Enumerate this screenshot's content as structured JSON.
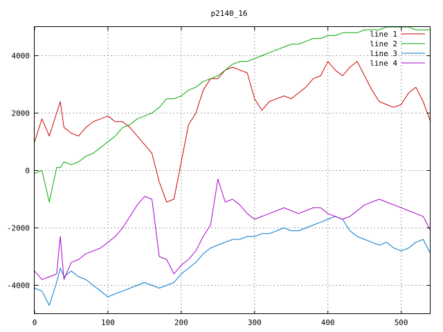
{
  "chart_data": {
    "type": "line",
    "title": "p2140_16",
    "xlabel": "",
    "ylabel": "",
    "xlim": [
      0,
      540
    ],
    "ylim": [
      -5000,
      5000
    ],
    "x_ticks": [
      "0",
      "100",
      "200",
      "300",
      "400",
      "500"
    ],
    "y_ticks": [
      "-4000",
      "-2000",
      "0",
      "2000",
      "4000"
    ],
    "grid": true,
    "legend_position": "top-right",
    "x": [
      0,
      10,
      20,
      30,
      35,
      40,
      50,
      60,
      70,
      80,
      90,
      100,
      110,
      120,
      130,
      140,
      150,
      160,
      170,
      180,
      190,
      200,
      210,
      220,
      230,
      240,
      250,
      260,
      270,
      280,
      290,
      300,
      310,
      320,
      330,
      340,
      350,
      360,
      370,
      380,
      390,
      400,
      410,
      420,
      430,
      440,
      450,
      460,
      470,
      480,
      490,
      500,
      510,
      520,
      530,
      540
    ],
    "series": [
      {
        "name": "line 1",
        "color": "#cc0000",
        "values": [
          1000,
          1800,
          1200,
          2000,
          2400,
          1500,
          1300,
          1200,
          1500,
          1700,
          1800,
          1900,
          1700,
          1700,
          1500,
          1200,
          900,
          600,
          -400,
          -1100,
          -1000,
          300,
          1600,
          2000,
          2800,
          3200,
          3200,
          3500,
          3600,
          3500,
          3400,
          2500,
          2100,
          2400,
          2500,
          2600,
          2500,
          2700,
          2900,
          3200,
          3300,
          3800,
          3500,
          3300,
          3600,
          3800,
          3300,
          2800,
          2400,
          2300,
          2200,
          2300,
          2700,
          2900,
          2400,
          1700
        ]
      },
      {
        "name": "line 2",
        "color": "#00aa00",
        "values": [
          -100,
          0,
          -1100,
          100,
          100,
          300,
          200,
          300,
          500,
          600,
          800,
          1000,
          1200,
          1500,
          1600,
          1800,
          1900,
          2000,
          2200,
          2500,
          2500,
          2600,
          2800,
          2900,
          3100,
          3200,
          3300,
          3500,
          3700,
          3800,
          3800,
          3900,
          4000,
          4100,
          4200,
          4300,
          4400,
          4400,
          4500,
          4600,
          4600,
          4700,
          4700,
          4800,
          4800,
          4800,
          4900,
          4900,
          4900,
          5000,
          5000,
          5000,
          5000,
          4900,
          4900,
          4900
        ]
      },
      {
        "name": "line 3",
        "color": "#0077cc",
        "values": [
          -4100,
          -4200,
          -4700,
          -3900,
          -3400,
          -3700,
          -3500,
          -3700,
          -3800,
          -4000,
          -4200,
          -4400,
          -4300,
          -4200,
          -4100,
          -4000,
          -3900,
          -4000,
          -4100,
          -4000,
          -3900,
          -3600,
          -3400,
          -3200,
          -2900,
          -2700,
          -2600,
          -2500,
          -2400,
          -2400,
          -2300,
          -2300,
          -2200,
          -2200,
          -2100,
          -2000,
          -2100,
          -2100,
          -2000,
          -1900,
          -1800,
          -1700,
          -1600,
          -1700,
          -2100,
          -2300,
          -2400,
          -2500,
          -2600,
          -2500,
          -2700,
          -2800,
          -2700,
          -2500,
          -2400,
          -2900
        ]
      },
      {
        "name": "line 4",
        "color": "#aa00cc",
        "values": [
          -3500,
          -3800,
          -3700,
          -3600,
          -2300,
          -3800,
          -3200,
          -3100,
          -2900,
          -2800,
          -2700,
          -2500,
          -2300,
          -2000,
          -1600,
          -1200,
          -900,
          -1000,
          -3000,
          -3100,
          -3600,
          -3300,
          -3100,
          -2800,
          -2300,
          -1900,
          -300,
          -1100,
          -1000,
          -1200,
          -1500,
          -1700,
          -1600,
          -1500,
          -1400,
          -1300,
          -1400,
          -1500,
          -1400,
          -1300,
          -1300,
          -1500,
          -1600,
          -1700,
          -1600,
          -1400,
          -1200,
          -1100,
          -1000,
          -1100,
          -1200,
          -1300,
          -1400,
          -1500,
          -1600,
          -2100
        ]
      }
    ]
  }
}
